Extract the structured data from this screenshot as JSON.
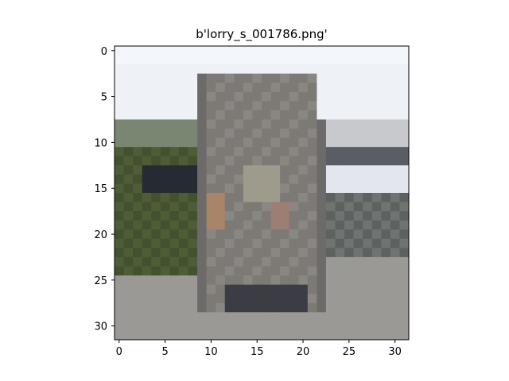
{
  "figure": {
    "title": "b'lorry_s_001786.png'"
  },
  "image": {
    "description_source": "32x32 low-resolution photo of a lorry/truck front",
    "grid_size": [
      32,
      32
    ]
  },
  "axes": {
    "x_ticks": [
      "0",
      "5",
      "10",
      "15",
      "20",
      "25",
      "30"
    ],
    "y_ticks": [
      "0",
      "5",
      "10",
      "15",
      "20",
      "25",
      "30"
    ]
  },
  "colors": {
    "sky": "#eef2f7",
    "truck_body": "#7d7a76",
    "truck_dark": "#3c3d44",
    "foliage": "#4f5d36",
    "road": "#9a9996"
  }
}
